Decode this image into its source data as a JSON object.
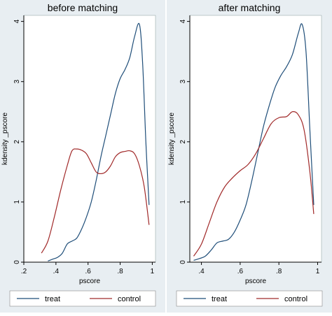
{
  "colors": {
    "treat": "#1f4e79",
    "control": "#a12a2a",
    "panel_bg": "#e8eef2",
    "plot_bg": "#ffffff",
    "axis": "#000000"
  },
  "chart_data": [
    {
      "type": "line",
      "title": "before matching",
      "xlabel": "pscore",
      "ylabel": "kdensity _pscore",
      "xlim": [
        0.2,
        1.02
      ],
      "ylim": [
        0,
        4.1
      ],
      "xticks": [
        0.2,
        0.4,
        0.6,
        0.8,
        1
      ],
      "xtick_labels": [
        ".2",
        ".4",
        ".6",
        ".8",
        "1"
      ],
      "yticks": [
        0,
        1,
        2,
        3,
        4
      ],
      "ytick_labels": [
        "0",
        "1",
        "2",
        "3",
        "4"
      ],
      "grid": false,
      "legend_position": "bottom",
      "series": [
        {
          "name": "treat",
          "x": [
            0.35,
            0.38,
            0.41,
            0.44,
            0.47,
            0.5,
            0.53,
            0.56,
            0.59,
            0.62,
            0.65,
            0.68,
            0.71,
            0.74,
            0.77,
            0.8,
            0.83,
            0.86,
            0.89,
            0.92,
            0.94,
            0.96,
            0.98
          ],
          "y": [
            0.02,
            0.05,
            0.08,
            0.15,
            0.3,
            0.35,
            0.4,
            0.55,
            0.75,
            1.0,
            1.35,
            1.75,
            2.1,
            2.45,
            2.8,
            3.05,
            3.2,
            3.4,
            3.75,
            3.95,
            3.3,
            2.0,
            0.95
          ]
        },
        {
          "name": "control",
          "x": [
            0.31,
            0.35,
            0.39,
            0.43,
            0.47,
            0.5,
            0.53,
            0.56,
            0.59,
            0.62,
            0.65,
            0.68,
            0.71,
            0.74,
            0.77,
            0.8,
            0.83,
            0.86,
            0.89,
            0.92,
            0.95,
            0.98
          ],
          "y": [
            0.15,
            0.35,
            0.75,
            1.2,
            1.6,
            1.85,
            1.88,
            1.86,
            1.8,
            1.65,
            1.5,
            1.47,
            1.5,
            1.6,
            1.75,
            1.82,
            1.84,
            1.85,
            1.8,
            1.6,
            1.25,
            0.62
          ]
        }
      ]
    },
    {
      "type": "line",
      "title": "after matching",
      "xlabel": "pscore",
      "ylabel": "kdensity _pscore",
      "xlim": [
        0.34,
        1.02
      ],
      "ylim": [
        0,
        4.1
      ],
      "xticks": [
        0.4,
        0.6,
        0.8,
        1
      ],
      "xtick_labels": [
        ".4",
        ".6",
        ".8",
        "1"
      ],
      "yticks": [
        0,
        1,
        2,
        3,
        4
      ],
      "ytick_labels": [
        "0",
        "1",
        "2",
        "3",
        "4"
      ],
      "grid": false,
      "legend_position": "bottom",
      "series": [
        {
          "name": "treat",
          "x": [
            0.36,
            0.39,
            0.42,
            0.45,
            0.48,
            0.51,
            0.54,
            0.57,
            0.6,
            0.63,
            0.66,
            0.69,
            0.72,
            0.75,
            0.78,
            0.81,
            0.84,
            0.87,
            0.9,
            0.92,
            0.94,
            0.96,
            0.98
          ],
          "y": [
            0.03,
            0.06,
            0.1,
            0.2,
            0.32,
            0.35,
            0.38,
            0.5,
            0.7,
            0.95,
            1.35,
            1.8,
            2.25,
            2.6,
            2.9,
            3.1,
            3.25,
            3.45,
            3.8,
            3.95,
            3.5,
            2.2,
            0.95
          ]
        },
        {
          "name": "control",
          "x": [
            0.36,
            0.4,
            0.44,
            0.48,
            0.52,
            0.56,
            0.6,
            0.64,
            0.68,
            0.72,
            0.76,
            0.8,
            0.84,
            0.87,
            0.9,
            0.93,
            0.96,
            0.98
          ],
          "y": [
            0.1,
            0.3,
            0.65,
            1.0,
            1.25,
            1.4,
            1.52,
            1.62,
            1.8,
            2.05,
            2.3,
            2.4,
            2.42,
            2.5,
            2.45,
            2.2,
            1.5,
            0.8
          ]
        }
      ]
    }
  ]
}
